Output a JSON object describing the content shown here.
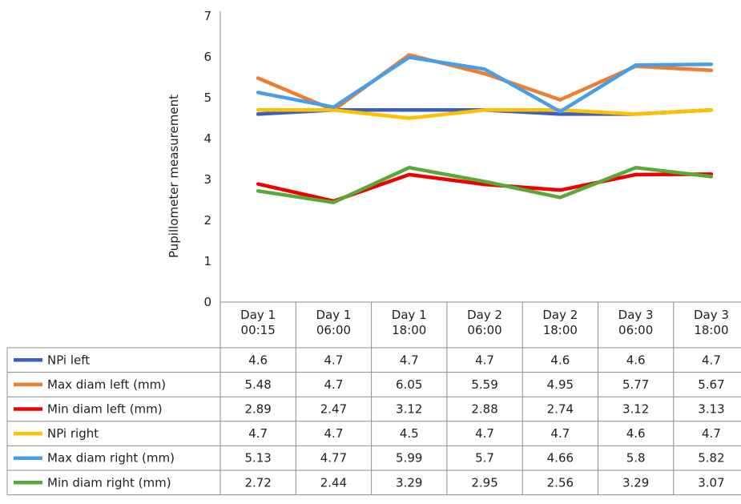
{
  "chart_data": {
    "type": "line",
    "ylabel": "Pupillometer measurement",
    "xlabel": "",
    "ylim": [
      0,
      7
    ],
    "yticks": [
      0,
      1,
      2,
      3,
      4,
      5,
      6,
      7
    ],
    "grid": false,
    "legend": "data-table",
    "categories": [
      [
        "Day 1",
        "00:15"
      ],
      [
        "Day 1",
        "06:00"
      ],
      [
        "Day 1",
        "18:00"
      ],
      [
        "Day 2",
        "06:00"
      ],
      [
        "Day 2",
        "18:00"
      ],
      [
        "Day 3",
        "06:00"
      ],
      [
        "Day 3",
        "18:00"
      ]
    ],
    "series": [
      {
        "name": "NPi left",
        "color": "#3a5fbf",
        "values": [
          4.6,
          4.7,
          4.7,
          4.7,
          4.6,
          4.6,
          4.7
        ],
        "labels": [
          "4.6",
          "4.7",
          "4.7",
          "4.7",
          "4.6",
          "4.6",
          "4.7"
        ]
      },
      {
        "name": "Max diam left (mm)",
        "color": "#ee7d31",
        "values": [
          5.48,
          4.7,
          6.05,
          5.59,
          4.95,
          5.77,
          5.67
        ],
        "labels": [
          "5.48",
          "4.7",
          "6.05",
          "5.59",
          "4.95",
          "5.77",
          "5.67"
        ]
      },
      {
        "name": "Min diam left (mm)",
        "color": "#ee0000",
        "values": [
          2.89,
          2.47,
          3.12,
          2.88,
          2.74,
          3.12,
          3.13
        ],
        "labels": [
          "2.89",
          "2.47",
          "3.12",
          "2.88",
          "2.74",
          "3.12",
          "3.13"
        ]
      },
      {
        "name": "NPi right",
        "color": "#ffc000",
        "values": [
          4.7,
          4.7,
          4.5,
          4.7,
          4.7,
          4.6,
          4.7
        ],
        "labels": [
          "4.7",
          "4.7",
          "4.5",
          "4.7",
          "4.7",
          "4.6",
          "4.7"
        ]
      },
      {
        "name": "Max diam right (mm)",
        "color": "#4a9ee8",
        "values": [
          5.13,
          4.77,
          5.99,
          5.7,
          4.66,
          5.8,
          5.82
        ],
        "labels": [
          "5.13",
          "4.77",
          "5.99",
          "5.7",
          "4.66",
          "5.8",
          "5.82"
        ]
      },
      {
        "name": "Min diam right (mm)",
        "color": "#5aa83a",
        "values": [
          2.72,
          2.44,
          3.29,
          2.95,
          2.56,
          3.29,
          3.07
        ],
        "labels": [
          "2.72",
          "2.44",
          "3.29",
          "2.95",
          "2.56",
          "3.29",
          "3.07"
        ]
      }
    ]
  }
}
